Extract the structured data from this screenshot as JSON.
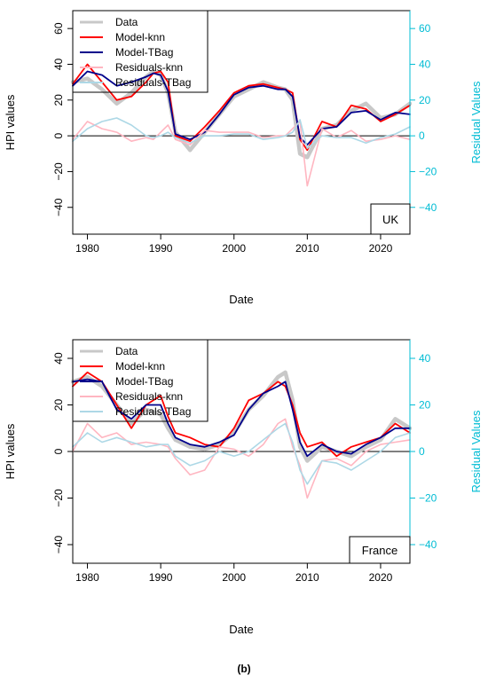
{
  "figure_label": "(b)",
  "colors": {
    "data": "#c8c8c8",
    "model_knn": "#ff0000",
    "model_tbag": "#00008b",
    "residuals_knn": "#ffb6c1",
    "residuals_tbag": "#add8e6",
    "right_axis": "#00bcd4"
  },
  "chart_data": [
    {
      "type": "line",
      "country": "UK",
      "xlabel": "Date",
      "ylabel": "HPI values",
      "y2label": "Residual Values",
      "xlim": [
        1978,
        2024
      ],
      "ylim": [
        -55,
        70
      ],
      "y2lim": [
        -55,
        70
      ],
      "x_ticks": [
        1980,
        1990,
        2000,
        2010,
        2020
      ],
      "y_ticks": [
        -40,
        -20,
        0,
        20,
        40,
        60
      ],
      "y2_ticks": [
        -40,
        -20,
        0,
        20,
        40,
        60
      ],
      "legend": [
        "Data",
        "Model-knn",
        "Model-TBag",
        "Residuals-knn",
        "Residuals-TBag"
      ],
      "legend_position": "top-left",
      "x": [
        1978,
        1980,
        1982,
        1984,
        1986,
        1988,
        1989,
        1990,
        1991,
        1992,
        1994,
        1996,
        1998,
        2000,
        2002,
        2004,
        2006,
        2007,
        2008,
        2009,
        2010,
        2012,
        2014,
        2016,
        2018,
        2020,
        2022,
        2024
      ],
      "series": [
        {
          "name": "Data",
          "values": [
            30,
            32,
            26,
            18,
            24,
            33,
            36,
            34,
            24,
            2,
            -8,
            2,
            12,
            22,
            26,
            30,
            27,
            26,
            20,
            -10,
            -12,
            4,
            6,
            14,
            18,
            10,
            12,
            18
          ]
        },
        {
          "name": "Model-knn",
          "values": [
            29,
            40,
            30,
            20,
            22,
            30,
            35,
            36,
            30,
            0,
            -3,
            5,
            14,
            24,
            28,
            29,
            27,
            26,
            24,
            -2,
            -8,
            8,
            5,
            17,
            15,
            8,
            12,
            17
          ]
        },
        {
          "name": "Model-TBag",
          "values": [
            28,
            36,
            34,
            28,
            30,
            33,
            35,
            34,
            25,
            1,
            -2,
            2,
            12,
            23,
            27,
            28,
            26,
            26,
            22,
            -1,
            -5,
            4,
            5,
            13,
            14,
            9,
            13,
            12
          ]
        },
        {
          "name": "Residuals-knn",
          "values": [
            -2,
            8,
            4,
            2,
            -3,
            -1,
            -2,
            2,
            6,
            -2,
            -5,
            3,
            2,
            2,
            2,
            -1,
            0,
            0,
            4,
            8,
            -28,
            4,
            -1,
            3,
            -3,
            -2,
            0,
            -2
          ]
        },
        {
          "name": "Residuals-TBag",
          "values": [
            -3,
            4,
            8,
            10,
            6,
            0,
            -1,
            0,
            2,
            -1,
            -4,
            0,
            0,
            1,
            1,
            -2,
            -1,
            0,
            2,
            9,
            -7,
            0,
            -1,
            -1,
            -4,
            -1,
            1,
            5
          ]
        }
      ]
    },
    {
      "type": "line",
      "country": "France",
      "xlabel": "Date",
      "ylabel": "HPI values",
      "y2label": "Residual Values",
      "xlim": [
        1978,
        2024
      ],
      "ylim": [
        -48,
        48
      ],
      "y2lim": [
        -48,
        48
      ],
      "x_ticks": [
        1980,
        1990,
        2000,
        2010,
        2020
      ],
      "y_ticks": [
        -40,
        -20,
        0,
        20,
        40
      ],
      "y2_ticks": [
        -40,
        -20,
        0,
        20,
        40
      ],
      "legend": [
        "Data",
        "Model-knn",
        "Model-TBag",
        "Residuals-knn",
        "Residuals-TBag"
      ],
      "legend_position": "top-left",
      "x": [
        1978,
        1980,
        1982,
        1984,
        1986,
        1988,
        1990,
        1991,
        1992,
        1994,
        1996,
        1998,
        2000,
        2002,
        2004,
        2006,
        2007,
        2008,
        2009,
        2010,
        2012,
        2014,
        2016,
        2018,
        2020,
        2022,
        2024
      ],
      "series": [
        {
          "name": "Data",
          "values": [
            30,
            32,
            28,
            20,
            12,
            18,
            16,
            10,
            5,
            2,
            1,
            3,
            8,
            18,
            24,
            32,
            34,
            22,
            2,
            -4,
            2,
            0,
            -2,
            2,
            5,
            14,
            10
          ]
        },
        {
          "name": "Model-knn",
          "values": [
            28,
            34,
            30,
            20,
            10,
            20,
            24,
            15,
            8,
            6,
            3,
            2,
            10,
            22,
            25,
            30,
            28,
            20,
            8,
            2,
            4,
            -2,
            2,
            4,
            6,
            12,
            8
          ]
        },
        {
          "name": "Model-TBag",
          "values": [
            30,
            31,
            30,
            18,
            14,
            20,
            20,
            12,
            6,
            3,
            2,
            4,
            7,
            18,
            25,
            28,
            30,
            18,
            4,
            -2,
            3,
            0,
            -1,
            3,
            6,
            10,
            10
          ]
        },
        {
          "name": "Residuals-knn",
          "values": [
            0,
            12,
            6,
            8,
            3,
            4,
            3,
            2,
            -3,
            -10,
            -8,
            2,
            1,
            -2,
            3,
            12,
            14,
            2,
            -6,
            -20,
            -4,
            -3,
            -6,
            0,
            3,
            4,
            5
          ]
        },
        {
          "name": "Residuals-TBag",
          "values": [
            2,
            8,
            4,
            6,
            4,
            2,
            3,
            3,
            -2,
            -6,
            -4,
            0,
            -2,
            0,
            5,
            10,
            12,
            4,
            -8,
            -14,
            -4,
            -5,
            -8,
            -4,
            0,
            6,
            8
          ]
        }
      ]
    }
  ]
}
